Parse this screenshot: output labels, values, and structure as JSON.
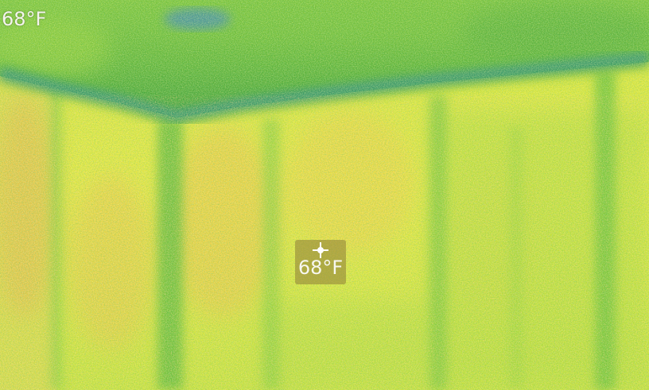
{
  "thermal_view": {
    "palette": {
      "cool": "#2f9a3a",
      "cold_spot": "#3f86b8",
      "mid": "#9fd23a",
      "warm": "#e9ea42",
      "hot": "#f2b84a"
    },
    "readout_temperature": "68°F",
    "spot": {
      "icon": "crosshair-icon",
      "temperature": "68°F"
    }
  }
}
